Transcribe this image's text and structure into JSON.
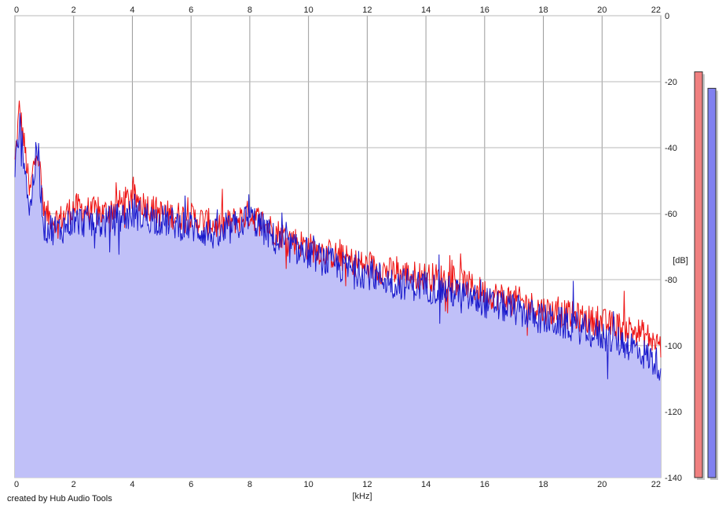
{
  "footer_text": "created by Hub Audio Tools",
  "chart_data": {
    "type": "line",
    "xlabel": "[kHz]",
    "ylabel": "[dB]",
    "xlim": [
      0,
      22
    ],
    "ylim": [
      -140,
      0
    ],
    "x_ticks": [
      "0",
      "2",
      "4",
      "6",
      "8",
      "10",
      "12",
      "14",
      "16",
      "18",
      "20",
      "22"
    ],
    "y_ticks": [
      "0",
      "-20",
      "-40",
      "-60",
      "-80",
      "-100",
      "-120",
      "-140"
    ],
    "grid": true,
    "colors": {
      "red": "#ee1111",
      "blue": "#1a1acc",
      "fill": "#c0c0f8",
      "grid": "#9a9a9a"
    },
    "level_meters": [
      {
        "channel": "left",
        "color": "#f08080",
        "level_db": -17
      },
      {
        "channel": "right",
        "color": "#8080f0",
        "level_db": -22
      }
    ],
    "series": [
      {
        "color": "red",
        "x": [
          0,
          0.15,
          0.3,
          0.4,
          0.5,
          0.75,
          1,
          1.5,
          2,
          3,
          4,
          5,
          6,
          7,
          8,
          9,
          10,
          11,
          12,
          13,
          14,
          15,
          16,
          17,
          18,
          19,
          20,
          21,
          21.5,
          22
        ],
        "y": [
          -45,
          -28,
          -38,
          -45,
          -55,
          -38,
          -60,
          -62,
          -58,
          -60,
          -55,
          -60,
          -61,
          -64,
          -60,
          -66,
          -70,
          -73,
          -76,
          -78,
          -79,
          -80,
          -84,
          -86,
          -89,
          -91,
          -93,
          -95,
          -97,
          -100
        ]
      },
      {
        "color": "blue",
        "x": [
          0,
          0.15,
          0.3,
          0.4,
          0.5,
          0.75,
          1,
          1.5,
          2,
          3,
          4,
          5,
          6,
          7,
          8,
          9,
          10,
          11,
          12,
          13,
          14,
          15,
          16,
          17,
          18,
          19,
          20,
          21,
          21.5,
          22
        ],
        "y": [
          -48,
          -33,
          -42,
          -50,
          -60,
          -40,
          -64,
          -65,
          -62,
          -63,
          -60,
          -62,
          -64,
          -67,
          -61,
          -69,
          -72,
          -76,
          -78,
          -81,
          -82,
          -84,
          -87,
          -89,
          -92,
          -94,
          -97,
          -100,
          -103,
          -106
        ]
      }
    ]
  }
}
